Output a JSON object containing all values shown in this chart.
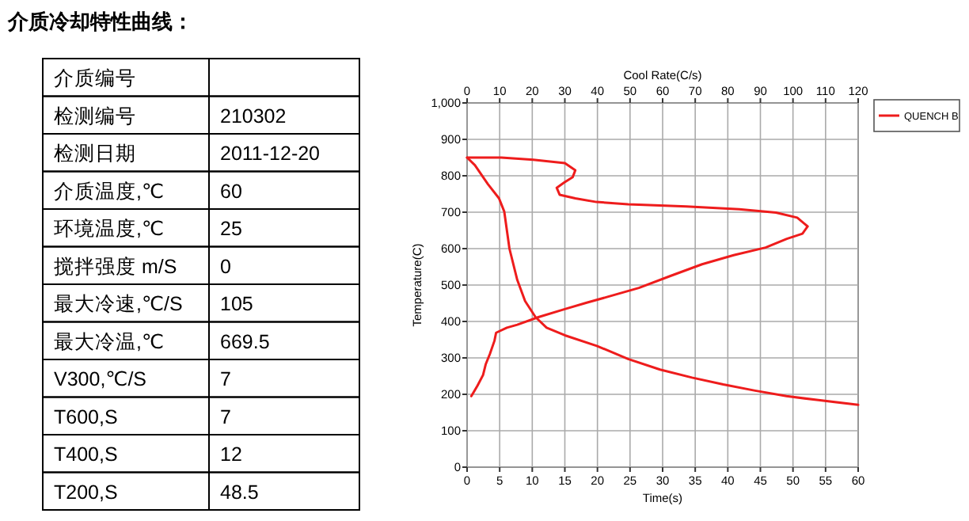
{
  "chart_data": [
    {
      "type": "other",
      "title": "介质冷却特性曲线：",
      "categories": [
        "介质编号",
        "检测编号",
        "检测日期",
        "介质温度,℃",
        "环境温度,℃",
        "搅拌强度 m/S",
        "最大冷速,℃/S",
        "最大冷温,℃",
        "V300,℃/S",
        "T600,S",
        "T400,S",
        "T200,S"
      ],
      "value_labels": [
        null,
        "210302",
        "2011-12-20",
        "60",
        "25",
        "0",
        "105",
        "669.5",
        "7",
        "7",
        "12",
        "48.5"
      ]
    },
    {
      "type": "line",
      "xlabel": "Time(s)",
      "x2label": "Cool Rate(C/s)",
      "ylabel": "Temperature(C)",
      "legend": "right",
      "grid": true,
      "xlim": [
        0,
        60
      ],
      "xticks": [
        0,
        5,
        10,
        15,
        20,
        25,
        30,
        35,
        40,
        45,
        50,
        55,
        60
      ],
      "x2lim": [
        0,
        120
      ],
      "x2ticks": [
        0,
        10,
        20,
        30,
        40,
        50,
        60,
        70,
        80,
        90,
        100,
        110,
        120
      ],
      "ylim": [
        0,
        1000
      ],
      "yticks": [
        0,
        100,
        200,
        300,
        400,
        500,
        600,
        700,
        800,
        900,
        {
          "value": 1000,
          "label": "1,000"
        }
      ],
      "series": [
        {
          "name": "QUENCH B",
          "color": "#ee1c1c",
          "x": [
            0,
            1.2,
            3.2,
            4.9,
            5.7,
            6.5,
            7.7,
            8.9,
            10.5,
            12.2,
            15,
            19.9,
            24.7,
            29.6,
            34.5,
            39.3,
            44.2,
            49,
            53.9,
            60
          ],
          "values": [
            850,
            829,
            777,
            738,
            702,
            600,
            514,
            456,
            412,
            383,
            362,
            333,
            297,
            268,
            246,
            227,
            210,
            195,
            184,
            171
          ]
        },
        {
          "color": "#ee1c1c",
          "axis": "x2",
          "x": [
            0,
            10.5,
            20.3,
            30,
            33.2,
            32.4,
            29.7,
            27.5,
            28.4,
            33.2,
            39.7,
            49.4,
            67.3,
            83.5,
            94.8,
            101.3,
            104.5,
            102.9,
            98.1,
            91.6,
            81.8,
            72.1,
            62.4,
            52.7,
            42.9,
            36.5,
            30,
            21.9,
            15.4,
            12.2,
            8.9,
            8.4,
            7,
            5.7,
            4.9,
            3.2,
            2.1,
            1.3
          ],
          "values": [
            850,
            850,
            844,
            835,
            815,
            796,
            781,
            767,
            748,
            738,
            728,
            722,
            716,
            708,
            699,
            685,
            661,
            641,
            627,
            603,
            582,
            557,
            525,
            492,
            467,
            451,
            434,
            412,
            391,
            383,
            369,
            347,
            311,
            282,
            253,
            224,
            207,
            195
          ]
        }
      ]
    }
  ]
}
